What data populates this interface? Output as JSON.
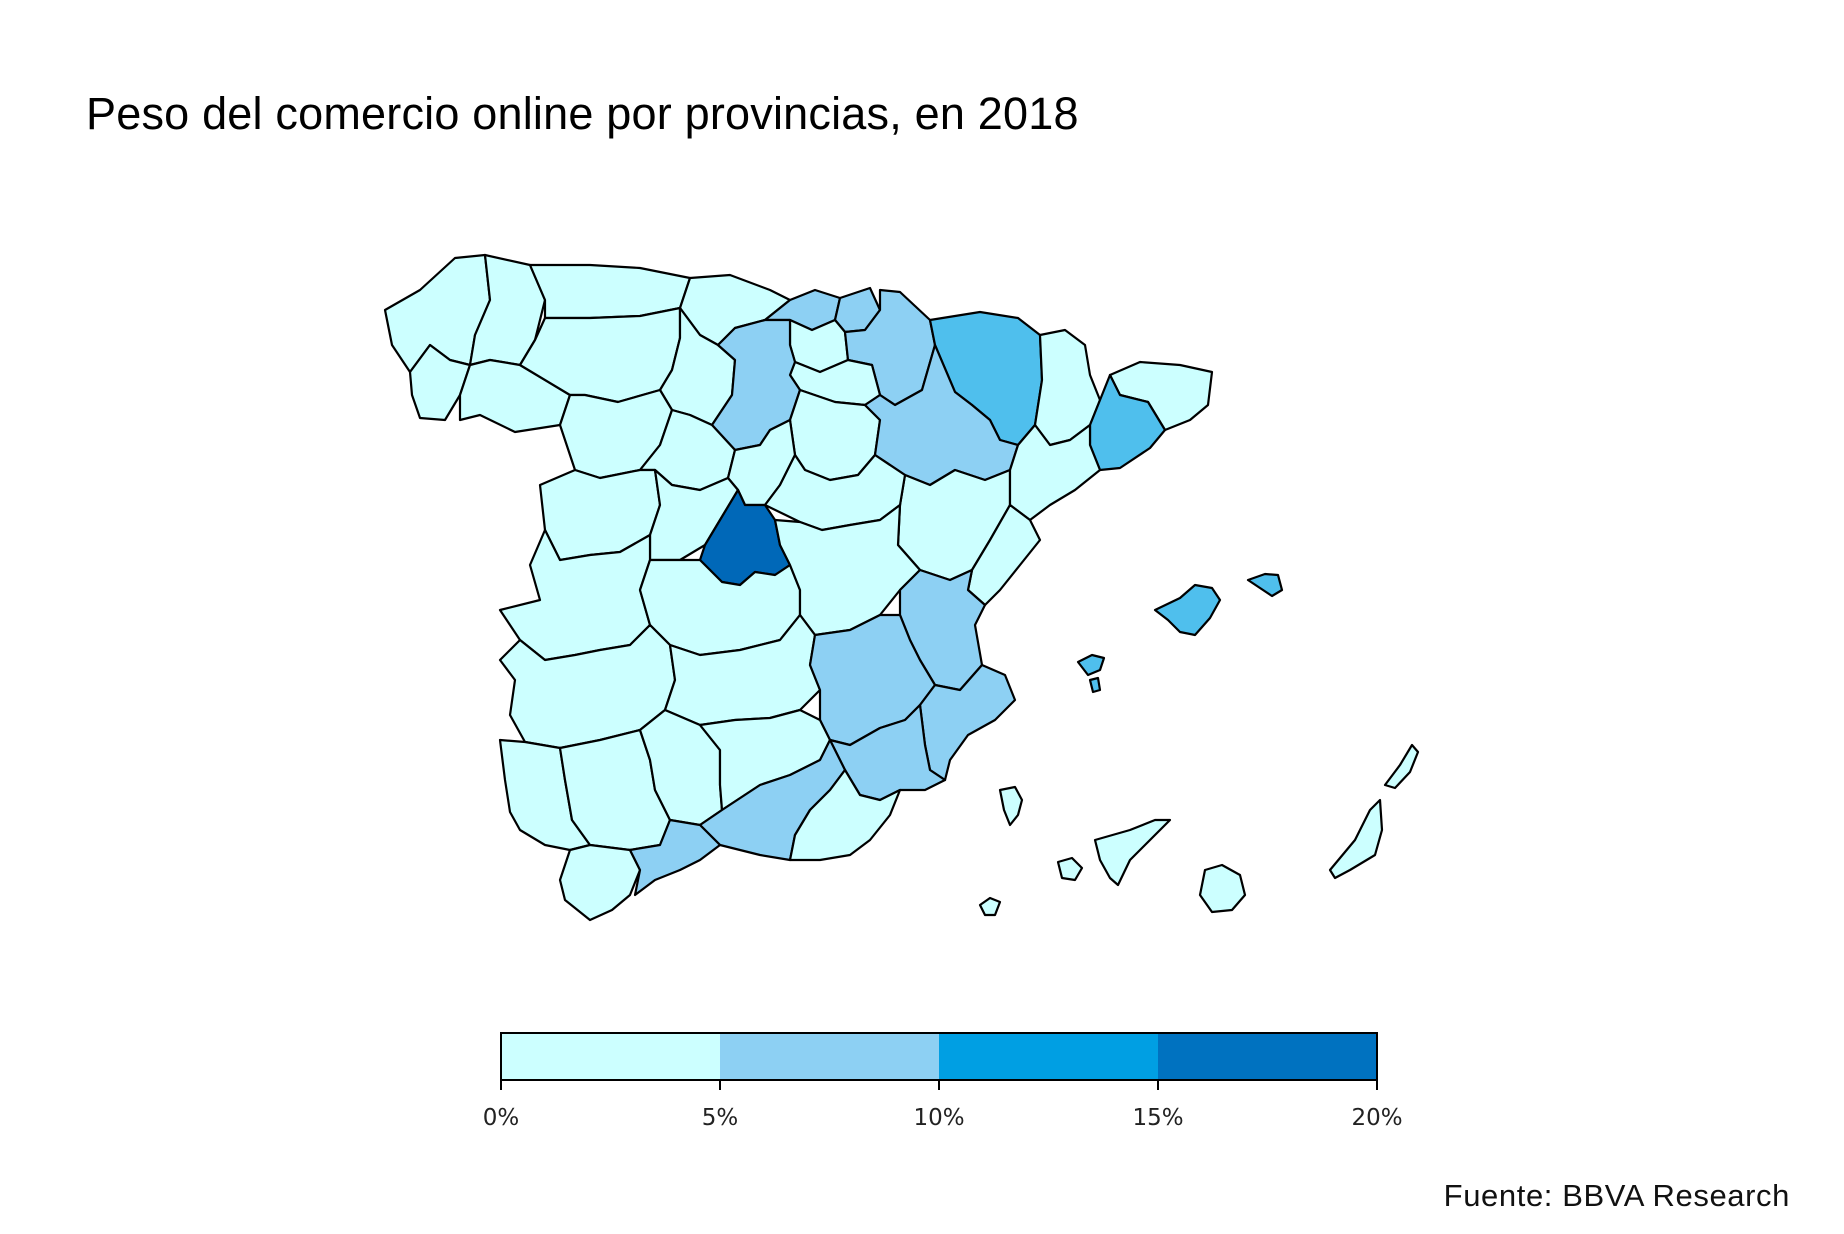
{
  "title": "Peso del comercio online por provincias, en 2018",
  "source": "Fuente: BBVA Research",
  "legend": {
    "ticks": [
      "0%",
      "5%",
      "10%",
      "15%",
      "20%"
    ],
    "classes": [
      {
        "range": "0%-5%",
        "color": "#ccffff"
      },
      {
        "range": "5%-10%",
        "color": "#8dd0f3"
      },
      {
        "range": "10%-15%",
        "color": "#009fe3"
      },
      {
        "range": "15%-20%",
        "color": "#0072c0"
      }
    ]
  },
  "colors": {
    "class1": "#ccffff",
    "class2": "#8dd0f3",
    "class3": "#4fbfed",
    "class4": "#0068b8",
    "border": "#000000"
  }
}
